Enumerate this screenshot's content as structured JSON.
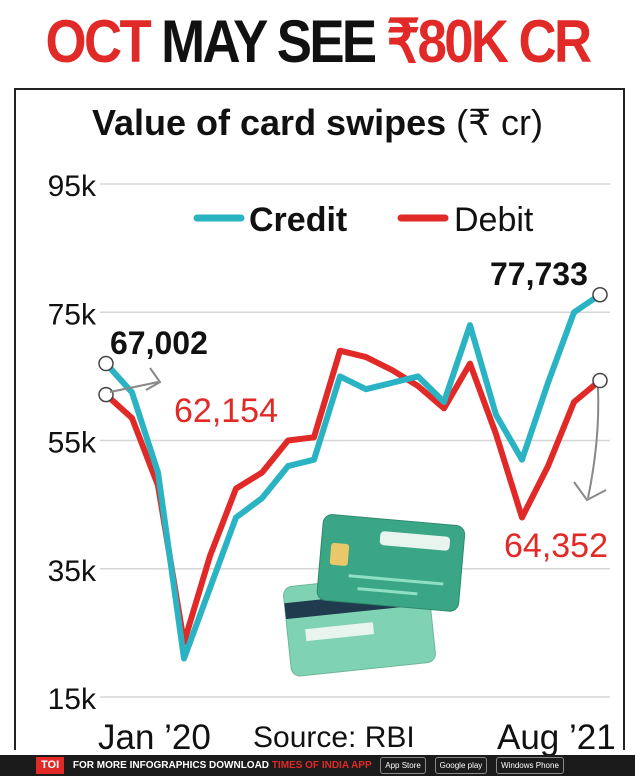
{
  "headline": {
    "part1": "OCT",
    "part2": "MAY SEE",
    "part3": "₹80K CR"
  },
  "chart_data": {
    "type": "line",
    "title_bold": "Value of card swipes",
    "title_unit": "(₹ cr)",
    "ylim": [
      15000,
      95000
    ],
    "y_ticks": [
      15000,
      35000,
      55000,
      75000,
      95000
    ],
    "y_tick_labels": [
      "15k",
      "35k",
      "55k",
      "75k",
      "95k"
    ],
    "x_start_label": "Jan ’20",
    "x_end_label": "Aug ’21",
    "x": [
      "Jan 2020",
      "Feb 2020",
      "Mar 2020",
      "Apr 2020",
      "May 2020",
      "Jun 2020",
      "Jul 2020",
      "Aug 2020",
      "Sep 2020",
      "Oct 2020",
      "Nov 2020",
      "Dec 2020",
      "Jan 2021",
      "Feb 2021",
      "Mar 2021",
      "Apr 2021",
      "May 2021",
      "Jun 2021",
      "Jul 2021",
      "Aug 2021"
    ],
    "series": [
      {
        "name": "Credit",
        "color": "#2ab3c3",
        "values": [
          67002,
          62500,
          50000,
          21000,
          32000,
          43000,
          46000,
          51000,
          52000,
          65000,
          63000,
          64000,
          65000,
          61000,
          73000,
          59000,
          52000,
          64000,
          75000,
          77733
        ]
      },
      {
        "name": "Debit",
        "color": "#e12a27",
        "values": [
          62154,
          58500,
          48000,
          23500,
          37000,
          47500,
          50000,
          55000,
          55500,
          69000,
          68000,
          66000,
          63500,
          60000,
          67000,
          56000,
          43000,
          51000,
          61000,
          64352
        ]
      }
    ],
    "annotations": [
      {
        "label": "67,002",
        "series": "Credit",
        "point": "Jan 2020"
      },
      {
        "label": "62,154",
        "series": "Debit",
        "point": "Jan 2020"
      },
      {
        "label": "77,733",
        "series": "Credit",
        "point": "Aug 2021"
      },
      {
        "label": "64,352",
        "series": "Debit",
        "point": "Aug 2021"
      }
    ],
    "source": "Source: RBI",
    "grid": true,
    "legend_position": "top"
  },
  "footer": {
    "logo": "TOI",
    "text": "FOR MORE INFOGRAPHICS DOWNLOAD",
    "app": "TIMES OF INDIA APP",
    "store1": "App Store",
    "store2": "Google play",
    "store3": "Windows Phone"
  },
  "icons": [
    "credit-card-illustration"
  ]
}
